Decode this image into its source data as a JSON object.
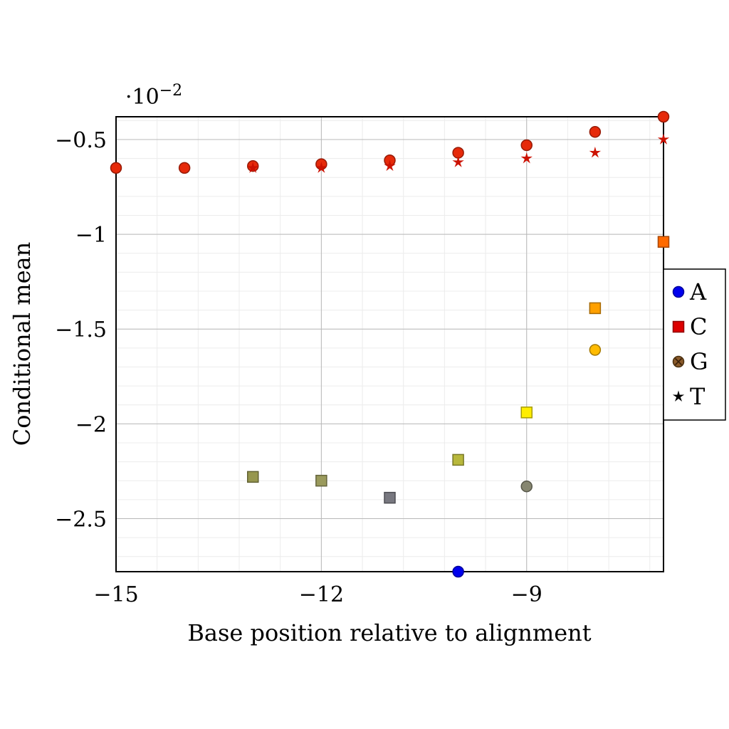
{
  "chart_data": {
    "type": "scatter",
    "xlabel": "Base position relative to alignment",
    "ylabel": "Conditional mean",
    "y_multiplier_label": "·10",
    "y_multiplier_exponent": "−2",
    "xlim": [
      -15,
      -7
    ],
    "ylim": [
      -2.78,
      -0.38
    ],
    "x_ticks": [
      {
        "value": -15,
        "label": "−15"
      },
      {
        "value": -12,
        "label": "−12"
      },
      {
        "value": -9,
        "label": "−9"
      }
    ],
    "y_ticks": [
      {
        "value": -0.5,
        "label": "−0.5"
      },
      {
        "value": -1,
        "label": "−1"
      },
      {
        "value": -1.5,
        "label": "−1.5"
      },
      {
        "value": -2,
        "label": "−2"
      },
      {
        "value": -2.5,
        "label": "−2.5"
      }
    ],
    "grid": true,
    "legend_position": "right",
    "legend": [
      {
        "label": "A",
        "marker": "circle",
        "color": "#0000ee"
      },
      {
        "label": "C",
        "marker": "square",
        "color": "#dd0000"
      },
      {
        "label": "G",
        "marker": "circle-x",
        "color": "#8a5a2a"
      },
      {
        "label": "T",
        "marker": "star",
        "color": "#000000"
      }
    ],
    "points": [
      {
        "x": -15,
        "y": -0.65,
        "marker": "circle",
        "color": "#e62a0a"
      },
      {
        "x": -14,
        "y": -0.65,
        "marker": "circle",
        "color": "#e62a0a"
      },
      {
        "x": -13,
        "y": -0.64,
        "marker": "circle",
        "color": "#e62a0a"
      },
      {
        "x": -12,
        "y": -0.63,
        "marker": "circle",
        "color": "#e62a0a"
      },
      {
        "x": -11,
        "y": -0.61,
        "marker": "circle",
        "color": "#e62a0a"
      },
      {
        "x": -10,
        "y": -0.57,
        "marker": "circle",
        "color": "#e62a0a"
      },
      {
        "x": -9,
        "y": -0.53,
        "marker": "circle",
        "color": "#e62a0a"
      },
      {
        "x": -8,
        "y": -0.46,
        "marker": "circle",
        "color": "#e62a0a"
      },
      {
        "x": -7,
        "y": -0.38,
        "marker": "circle",
        "color": "#e62a0a"
      },
      {
        "x": -13,
        "y": -0.65,
        "marker": "star",
        "color": "#cc1100"
      },
      {
        "x": -12,
        "y": -0.65,
        "marker": "star",
        "color": "#cc1100"
      },
      {
        "x": -11,
        "y": -0.64,
        "marker": "star",
        "color": "#cc1100"
      },
      {
        "x": -10,
        "y": -0.62,
        "marker": "star",
        "color": "#cc1100"
      },
      {
        "x": -9,
        "y": -0.6,
        "marker": "star",
        "color": "#cc1100"
      },
      {
        "x": -8,
        "y": -0.57,
        "marker": "star",
        "color": "#cc1100"
      },
      {
        "x": -7,
        "y": -0.5,
        "marker": "star",
        "color": "#cc1100"
      },
      {
        "x": -7,
        "y": -1.04,
        "marker": "square",
        "color": "#ff6a00"
      },
      {
        "x": -8,
        "y": -1.39,
        "marker": "square",
        "color": "#ffa000"
      },
      {
        "x": -8,
        "y": -1.61,
        "marker": "circle",
        "color": "#ffbb00"
      },
      {
        "x": -9,
        "y": -1.94,
        "marker": "square",
        "color": "#ffee00"
      },
      {
        "x": -10,
        "y": -2.19,
        "marker": "square",
        "color": "#b8b83c"
      },
      {
        "x": -13,
        "y": -2.28,
        "marker": "square",
        "color": "#96964e"
      },
      {
        "x": -12,
        "y": -2.3,
        "marker": "square",
        "color": "#9a9a5c"
      },
      {
        "x": -11,
        "y": -2.39,
        "marker": "square",
        "color": "#787880"
      },
      {
        "x": -9,
        "y": -2.33,
        "marker": "circle",
        "color": "#868670"
      },
      {
        "x": -10,
        "y": -2.78,
        "marker": "circle",
        "color": "#0000ee"
      }
    ]
  }
}
